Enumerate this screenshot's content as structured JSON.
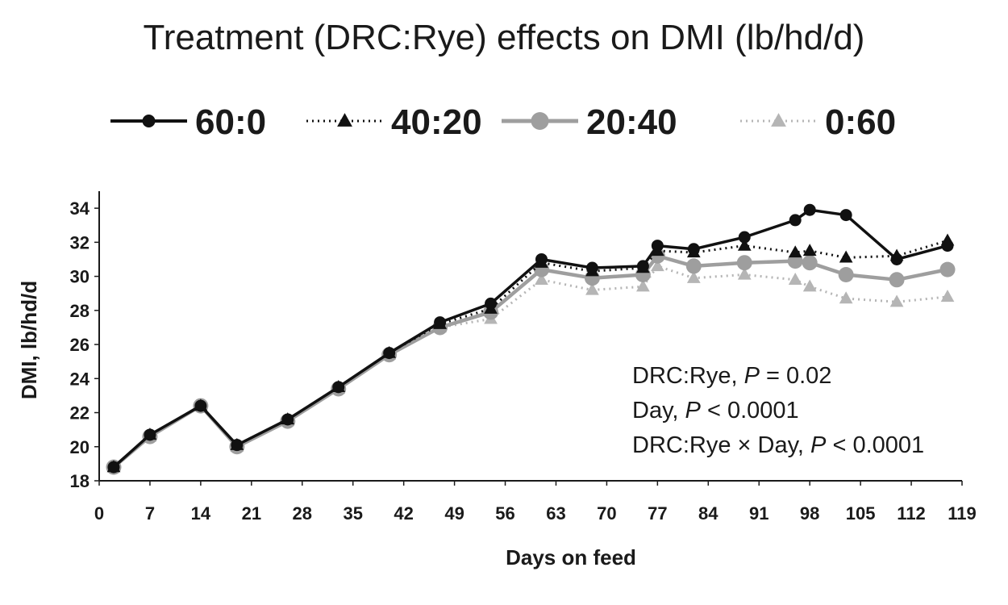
{
  "chart_data": {
    "type": "line",
    "title": "Treatment (DRC:Rye) effects on DMI (lb/hd/d)",
    "xlabel": "Days on feed",
    "ylabel": "DMI, lb/hd/d",
    "xlim": [
      0,
      119
    ],
    "ylim": [
      18,
      35
    ],
    "x_ticks": [
      0,
      7,
      14,
      21,
      28,
      35,
      42,
      49,
      56,
      63,
      70,
      77,
      84,
      91,
      98,
      105,
      112,
      119
    ],
    "y_ticks": [
      18,
      20,
      22,
      24,
      26,
      28,
      30,
      32,
      34
    ],
    "grid": false,
    "legend_position": "top",
    "x": [
      2,
      7,
      14,
      19,
      26,
      33,
      40,
      47,
      54,
      61,
      68,
      75,
      77,
      82,
      89,
      96,
      98,
      103,
      110,
      117
    ],
    "series": [
      {
        "name": "60:0",
        "color": "#111111",
        "line_style": "solid",
        "marker": "circle",
        "values": [
          18.8,
          20.7,
          22.4,
          20.1,
          21.6,
          23.5,
          25.5,
          27.3,
          28.4,
          31.0,
          30.5,
          30.6,
          31.8,
          31.6,
          32.3,
          33.3,
          33.9,
          33.6,
          31.0,
          31.8
        ]
      },
      {
        "name": "40:20",
        "color": "#111111",
        "line_style": "dotted",
        "marker": "triangle",
        "values": [
          18.8,
          20.7,
          22.4,
          20.1,
          21.6,
          23.5,
          25.5,
          27.2,
          28.1,
          30.8,
          30.3,
          30.5,
          31.5,
          31.4,
          31.8,
          31.4,
          31.5,
          31.1,
          31.2,
          32.1
        ]
      },
      {
        "name": "20:40",
        "color": "#9e9e9e",
        "line_style": "solid",
        "marker": "circle",
        "values": [
          18.8,
          20.6,
          22.4,
          20.0,
          21.5,
          23.4,
          25.4,
          27.0,
          27.9,
          30.4,
          29.9,
          30.1,
          31.2,
          30.6,
          30.8,
          30.9,
          30.8,
          30.1,
          29.8,
          30.4
        ]
      },
      {
        "name": "0:60",
        "color": "#b5b5b5",
        "line_style": "dotted",
        "marker": "triangle",
        "values": [
          18.8,
          20.6,
          22.4,
          20.0,
          21.5,
          23.4,
          25.4,
          27.0,
          27.5,
          29.8,
          29.2,
          29.4,
          30.6,
          29.9,
          30.1,
          29.8,
          29.4,
          28.7,
          28.5,
          28.8
        ]
      }
    ],
    "annotations": [
      {
        "segments": [
          {
            "text": "DRC:Rye, ",
            "italic": false
          },
          {
            "text": "P",
            "italic": true
          },
          {
            "text": " = 0.02",
            "italic": false
          }
        ]
      },
      {
        "segments": [
          {
            "text": "Day, ",
            "italic": false
          },
          {
            "text": "P",
            "italic": true
          },
          {
            "text": " < 0.0001",
            "italic": false
          }
        ]
      },
      {
        "segments": [
          {
            "text": "DRC:Rye × Day, ",
            "italic": false
          },
          {
            "text": "P",
            "italic": true
          },
          {
            "text": " < 0.0001",
            "italic": false
          }
        ]
      }
    ]
  }
}
